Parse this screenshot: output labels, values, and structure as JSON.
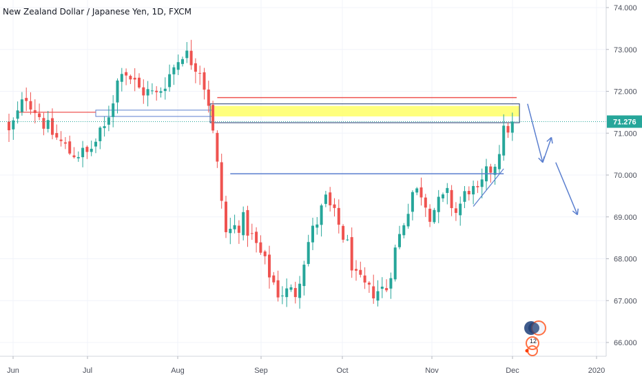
{
  "header": {
    "symbol_title": "New Zealand Dollar / Japanese Yen, 1D, FXCM"
  },
  "price_axis": {
    "ticks": [
      "74.000",
      "73.000",
      "72.000",
      "71.000",
      "70.000",
      "69.000",
      "68.000",
      "67.000",
      "66.000"
    ],
    "last_price_label": "71.276",
    "last_price_badge_color": "#26a69a"
  },
  "time_axis": {
    "labels": [
      "Jun",
      "Jul",
      "Aug",
      "Sep",
      "Oct",
      "Nov",
      "Dec",
      "2020"
    ]
  },
  "colors": {
    "up": "#26a69a",
    "down": "#ef5350",
    "drawing_blue": "#5b7fcf",
    "drawing_red": "#ef5350",
    "zone_fill": "#ffff66",
    "last_price_line": "#26a69a",
    "grid": "#f0f3fa"
  },
  "logo": {
    "icon": "tradingview-badge-icon",
    "text": "12"
  },
  "chart_data": {
    "type": "candlestick",
    "title": "New Zealand Dollar / Japanese Yen, 1D, FXCM",
    "ylim": [
      65.6,
      74.1
    ],
    "y_ticks": [
      74,
      73,
      72,
      71,
      70,
      69,
      68,
      67,
      66
    ],
    "last_price": 71.276,
    "x_labels": [
      "Jun",
      "Jul",
      "Aug",
      "Sep",
      "Oct",
      "Nov",
      "Dec",
      "2020"
    ],
    "grid": true,
    "path_segments": [
      [
        0,
        71.4,
        71.0
      ],
      [
        4,
        71.2,
        71.9
      ],
      [
        9,
        71.6,
        71.1
      ],
      [
        14,
        71.0,
        70.55
      ],
      [
        18,
        70.7,
        70.5
      ],
      [
        22,
        70.55,
        71.1
      ],
      [
        26,
        71.3,
        72.6
      ],
      [
        30,
        72.3,
        72.05
      ],
      [
        34,
        72.1,
        71.9
      ],
      [
        37,
        71.95,
        72.4
      ],
      [
        40,
        72.5,
        72.95
      ],
      [
        44,
        72.8,
        72.55
      ],
      [
        46,
        72.4,
        71.75
      ],
      [
        48,
        71.7,
        70.2
      ],
      [
        50,
        69.8,
        68.6
      ],
      [
        54,
        68.4,
        68.9
      ],
      [
        58,
        68.5,
        68.1
      ],
      [
        62,
        68.0,
        67.2
      ],
      [
        66,
        67.0,
        67.2
      ],
      [
        69,
        67.3,
        68.4
      ],
      [
        73,
        68.5,
        69.4
      ],
      [
        76,
        69.2,
        68.8
      ],
      [
        78,
        68.6,
        68.3
      ],
      [
        80,
        68.0,
        67.5
      ],
      [
        83,
        67.6,
        67.2
      ],
      [
        87,
        67.1,
        67.3
      ],
      [
        89,
        67.5,
        68.2
      ],
      [
        93,
        68.4,
        69.6
      ],
      [
        95,
        69.8,
        69.6
      ],
      [
        97,
        69.3,
        69.1
      ],
      [
        101,
        69.3,
        69.5
      ],
      [
        103,
        69.4,
        69.1
      ],
      [
        106,
        69.3,
        69.7
      ],
      [
        108,
        69.8,
        69.5
      ],
      [
        110,
        69.6,
        70.0
      ],
      [
        112,
        70.2,
        70.3
      ],
      [
        114,
        70.5,
        71.0
      ],
      [
        116,
        71.1,
        71.28
      ]
    ],
    "drawings": {
      "resistance_zone": {
        "from": 71.4,
        "to": 71.65,
        "x_start": 47,
        "x_end": 117
      },
      "resistance_box": {
        "from": 71.25,
        "to": 71.7,
        "x_start": 47,
        "x_end": 117
      },
      "red_resistance_line": {
        "y": 71.85,
        "x_start": 48,
        "x_end": 117
      },
      "blue_support_line": {
        "y": 70.03,
        "x_start": 51,
        "x_end": 114
      },
      "left_red_level": {
        "y": 71.5,
        "x_start": 2,
        "x_end": 20
      },
      "left_blue_box": {
        "from": 71.4,
        "to": 71.55,
        "x_start": 20,
        "x_end": 47
      },
      "trendline": {
        "x0": 107,
        "y0": 69.25,
        "x1": 114,
        "y1": 70.15
      },
      "projection_arrows": [
        [
          119.5,
          71.7
        ],
        [
          123,
          70.3
        ],
        [
          125,
          70.9
        ],
        [
          126,
          70.3
        ],
        [
          128.5,
          69.6
        ],
        [
          131,
          69.05
        ]
      ]
    }
  }
}
